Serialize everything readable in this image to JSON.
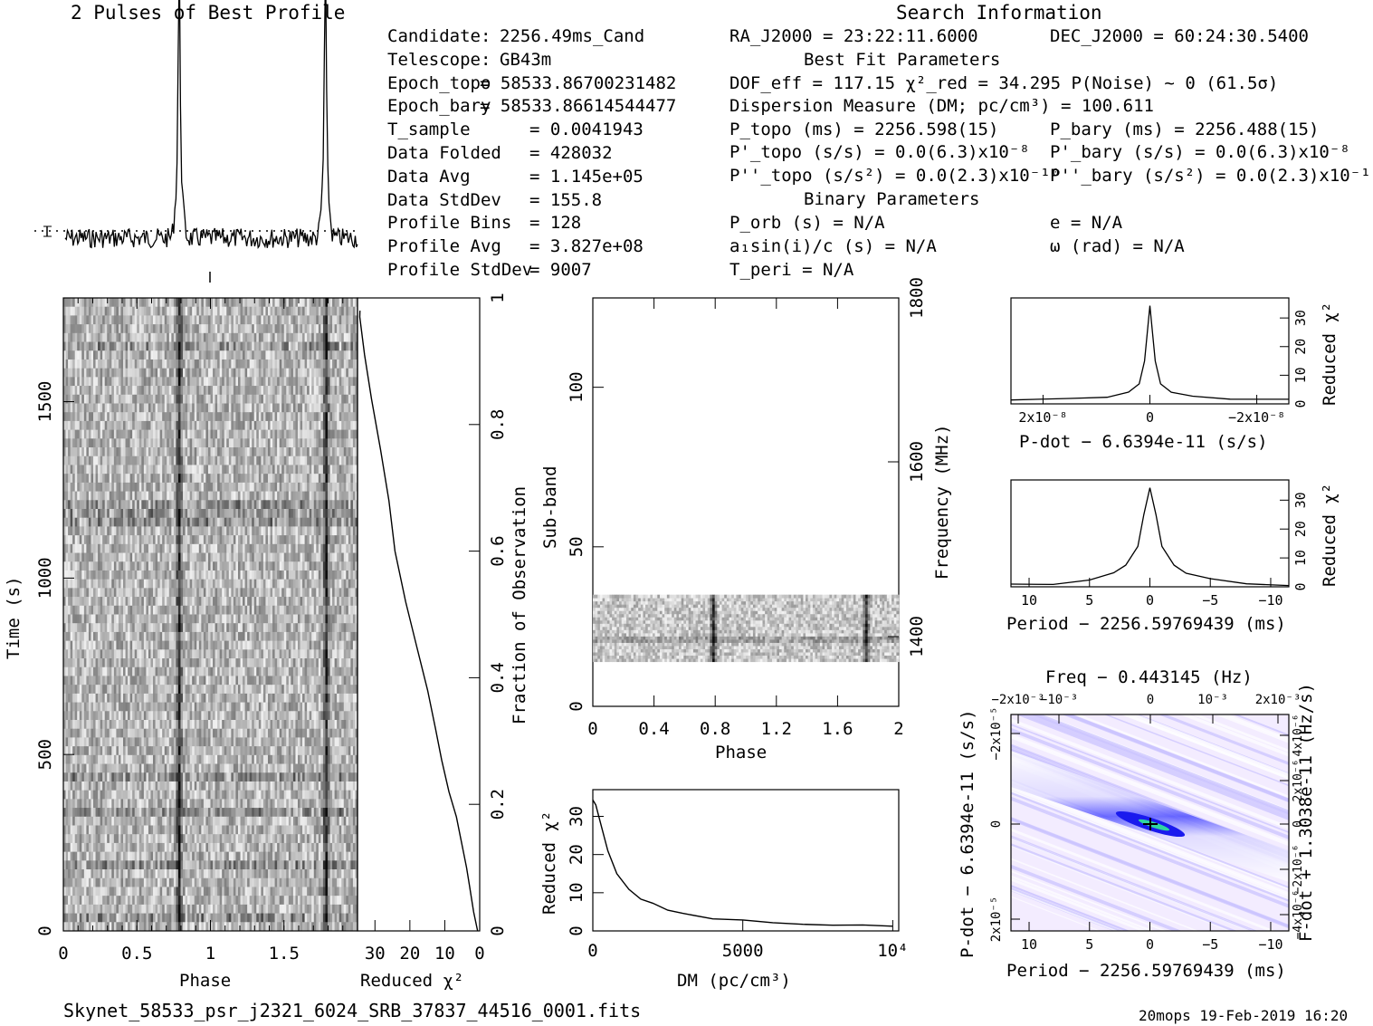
{
  "header": {
    "profile_title": "2 Pulses of Best Profile",
    "search_title": "Search Information",
    "best_fit_title": "Best Fit Parameters",
    "binary_title": "Binary Parameters"
  },
  "info_left": [
    {
      "k": "Candidate:",
      "v": "2256.49ms_Cand"
    },
    {
      "k": "Telescope:",
      "v": "GB43m"
    },
    {
      "k": "Epoch_topo",
      "v": "= 58533.86700231482"
    },
    {
      "k": "Epoch_bary",
      "v": "= 58533.86614544477"
    },
    {
      "k": "T_sample",
      "v": "=  0.0041943"
    },
    {
      "k": "Data Folded",
      "v": "=  428032"
    },
    {
      "k": "Data Avg",
      "v": "=  1.145e+05"
    },
    {
      "k": "Data StdDev",
      "v": "=  155.8"
    },
    {
      "k": "Profile Bins",
      "v": "=  128"
    },
    {
      "k": "Profile Avg",
      "v": "=  3.827e+08"
    },
    {
      "k": "Profile StdDev",
      "v": "=  9007"
    }
  ],
  "info_mid": {
    "ra": "RA_J2000 = 23:22:11.6000",
    "dof": "DOF_eff = 117.15  χ²_red = 34.295  P(Noise) ~ 0   (61.5σ)",
    "dm": "Dispersion Measure (DM; pc/cm³) = 100.611",
    "ptopo": "P_topo (ms) =  2256.598(15)",
    "pdtopo": "P'_topo (s/s) = 0.0(6.3)x10⁻⁸",
    "pddtopo": "P''_topo (s/s²) = 0.0(2.3)x10⁻¹⁰",
    "porb": "P_orb (s) = N/A",
    "a1": "a₁sin(i)/c (s) = N/A",
    "tperi": "T_peri = N/A"
  },
  "info_right": {
    "dec": "DEC_J2000 = 60:24:30.5400",
    "pbary": "P_bary (ms) =  2256.488(15)",
    "pdbary": "P'_bary (s/s) = 0.0(6.3)x10⁻⁸",
    "pddbary": "P''_bary (s/s²) = 0.0(2.3)x10⁻¹⁰",
    "e": "e = N/A",
    "omega": "ω (rad) = N/A"
  },
  "footer": {
    "filename": "Skynet_58533_psr_j2321_6024_SRB_37837_44516_0001.fits",
    "stamp": "20mops 19-Feb-2019 16:20"
  },
  "colors": {
    "cmap_low": "#ffffff",
    "cmap_mid": "#4a4aff",
    "cmap_peak": "#2fd6a0",
    "ink": "#000000"
  },
  "chart_data": [
    {
      "type": "line",
      "id": "profile",
      "title": "2 Pulses of Best Profile",
      "x": [
        0,
        2
      ],
      "peaks_phase": [
        0.78,
        1.78
      ],
      "baseline_sigma_marker": "error-bar",
      "note_values": "profile over 2 pulses, sharp peak near phase 0.78 and 1.78"
    },
    {
      "type": "heatmap",
      "id": "time_phase",
      "xlabel": "Phase",
      "ylabel": "Time (s)",
      "xticks": [
        "0",
        "0.5",
        "1",
        "1.5"
      ],
      "yticks": [
        "0",
        "500",
        "1000",
        "1500"
      ],
      "xlim": [
        0,
        2
      ],
      "ylim": [
        0,
        1794
      ]
    },
    {
      "type": "line",
      "id": "time_chi2",
      "xlabel": "Reduced χ²",
      "ylabel": "Fraction of Observation",
      "xticks": [
        "30",
        "20",
        "10",
        "0"
      ],
      "yticks": [
        "0",
        "0.2",
        "0.4",
        "0.6",
        "0.8",
        "1"
      ],
      "xlim": [
        35,
        0
      ],
      "ylim": [
        0,
        1
      ],
      "x": [
        0.5,
        1.5,
        3,
        4,
        5,
        6.5,
        9,
        11,
        12.5,
        15,
        18,
        21,
        24,
        26,
        28.5,
        31,
        33,
        34.3
      ],
      "y": [
        0.0,
        0.03,
        0.07,
        0.1,
        0.13,
        0.18,
        0.22,
        0.27,
        0.32,
        0.38,
        0.45,
        0.52,
        0.6,
        0.68,
        0.76,
        0.84,
        0.91,
        0.97
      ]
    },
    {
      "type": "heatmap",
      "id": "subband_phase",
      "xlabel": "Phase",
      "ylabel": "Sub-band",
      "y2label": "Frequency (MHz)",
      "xticks": [
        "0",
        "0.4",
        "0.8",
        "1.2",
        "1.6",
        "2"
      ],
      "yticks": [
        "0",
        "50",
        "100"
      ],
      "y2ticks": [
        "1400",
        "1600",
        "1800"
      ],
      "xlim": [
        0,
        2
      ],
      "ylim": [
        0,
        128
      ],
      "data_rows": [
        14,
        35
      ]
    },
    {
      "type": "line",
      "id": "dm_chi2",
      "xlabel": "DM (pc/cm³)",
      "ylabel": "Reduced χ²",
      "xticks": [
        "0",
        "5000",
        "10⁴"
      ],
      "yticks": [
        "0",
        "10",
        "20",
        "30"
      ],
      "xlim": [
        0,
        10200
      ],
      "ylim": [
        0,
        37
      ],
      "x": [
        0,
        100,
        300,
        500,
        800,
        1200,
        1600,
        2000,
        2500,
        3000,
        4000,
        5000,
        6000,
        7000,
        8000,
        9000,
        10000
      ],
      "y": [
        34.3,
        33,
        27,
        21,
        15,
        11,
        8.5,
        7,
        5.5,
        4.5,
        3.3,
        2.6,
        2.2,
        1.8,
        1.5,
        1.3,
        1.1
      ]
    },
    {
      "type": "line",
      "id": "pdot_chi2",
      "xlabel": "P-dot − 6.6394e-11 (s/s)",
      "ylabel": "Reduced χ²",
      "xticks": [
        "2x10⁻⁸",
        "0",
        "−2x10⁻⁸"
      ],
      "yticks": [
        "0",
        "10",
        "20",
        "30"
      ],
      "xlim": [
        2.6e-08,
        -2.6e-08
      ],
      "ylim": [
        0,
        37
      ],
      "x": [
        2.6e-08,
        1.5e-08,
        8e-09,
        4e-09,
        2e-09,
        1e-09,
        0,
        -1e-09,
        -2e-09,
        -4e-09,
        -8e-09,
        -1.5e-08,
        -2.6e-08
      ],
      "y": [
        1.5,
        1.8,
        2.5,
        4,
        7,
        15,
        34.3,
        15,
        7,
        4,
        2.5,
        1.8,
        1.4
      ]
    },
    {
      "type": "line",
      "id": "period_chi2",
      "xlabel": "Period − 2256.59769439 (ms)",
      "ylabel": "Reduced χ²",
      "xticks": [
        "10",
        "5",
        "0",
        "−5",
        "−10"
      ],
      "yticks": [
        "0",
        "10",
        "20",
        "30"
      ],
      "xlim": [
        11.5,
        -11.5
      ],
      "ylim": [
        0,
        37
      ],
      "x": [
        11.5,
        8,
        5,
        3,
        2,
        1,
        0.5,
        0,
        -0.5,
        -1,
        -2,
        -3,
        -5,
        -8,
        -11.5
      ],
      "y": [
        0.8,
        1.2,
        2.5,
        4.5,
        7.5,
        14,
        25,
        34.3,
        25,
        14,
        7.5,
        4.5,
        2.5,
        1.2,
        0.8
      ]
    },
    {
      "type": "heatmap",
      "id": "p_pdot",
      "title": "Freq − 0.443145 (Hz)",
      "xlabel": "Period − 2256.59769439 (ms)",
      "ylabel": "P-dot − 6.6394e-11 (s/s)",
      "y2label": "F-dot + 1.3038e-11 (Hz/s)",
      "xticks": [
        "10",
        "5",
        "0",
        "−5",
        "−10"
      ],
      "x2ticks": [
        "−2x10⁻³",
        "−10⁻³",
        "0",
        "10⁻³",
        "2x10⁻³"
      ],
      "yticks": [
        "−2x10⁻⁵",
        "0",
        "2x10⁻⁵"
      ],
      "y2ticks": [
        "4x10⁻⁶",
        "2x10⁻⁶",
        "0",
        "−2x10⁻⁶",
        "−4x10⁻⁶"
      ],
      "xlim": [
        11.5,
        -11.5
      ],
      "ylim": [
        -3e-05,
        3e-05
      ],
      "best": [
        0,
        0
      ]
    }
  ]
}
